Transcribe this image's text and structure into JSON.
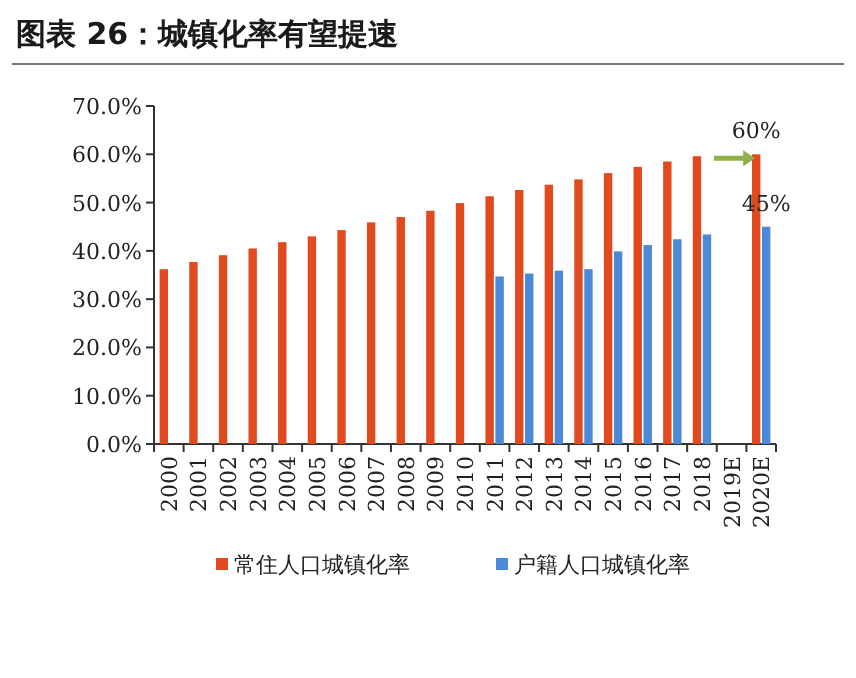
{
  "chart_data": {
    "type": "bar",
    "title": "图表 26：城镇化率有望提速",
    "categories": [
      "2000",
      "2001",
      "2002",
      "2003",
      "2004",
      "2005",
      "2006",
      "2007",
      "2008",
      "2009",
      "2010",
      "2011",
      "2012",
      "2013",
      "2014",
      "2015",
      "2016",
      "2017",
      "2018",
      "2019E",
      "2020E"
    ],
    "series": [
      {
        "name": "常住人口城镇化率",
        "color": "#e04a1e",
        "values": [
          36.2,
          37.7,
          39.1,
          40.5,
          41.8,
          43.0,
          44.3,
          45.9,
          47.0,
          48.3,
          49.9,
          51.3,
          52.6,
          53.7,
          54.8,
          56.1,
          57.4,
          58.5,
          59.6,
          null,
          60
        ],
        "value_labels": [
          null,
          null,
          null,
          null,
          null,
          null,
          null,
          null,
          null,
          null,
          null,
          null,
          null,
          null,
          null,
          null,
          null,
          null,
          null,
          null,
          "60%"
        ]
      },
      {
        "name": "户籍人口城镇化率",
        "color": "#4a8ad8",
        "values": [
          null,
          null,
          null,
          null,
          null,
          null,
          null,
          null,
          null,
          null,
          null,
          34.7,
          35.3,
          35.9,
          36.2,
          39.9,
          41.2,
          42.4,
          43.4,
          null,
          45
        ],
        "value_labels": [
          null,
          null,
          null,
          null,
          null,
          null,
          null,
          null,
          null,
          null,
          null,
          null,
          null,
          null,
          null,
          null,
          null,
          null,
          null,
          null,
          "45%"
        ]
      }
    ],
    "ylim": [
      0,
      70
    ],
    "yticks": [
      {
        "value": 0,
        "label": "0.0%"
      },
      {
        "value": 10,
        "label": "10.0%"
      },
      {
        "value": 20,
        "label": "20.0%"
      },
      {
        "value": 30,
        "label": "30.0%"
      },
      {
        "value": 40,
        "label": "40.0%"
      },
      {
        "value": 50,
        "label": "50.0%"
      },
      {
        "value": 60,
        "label": "60.0%"
      },
      {
        "value": 70,
        "label": "70.0%"
      }
    ],
    "legend": "bottom"
  }
}
